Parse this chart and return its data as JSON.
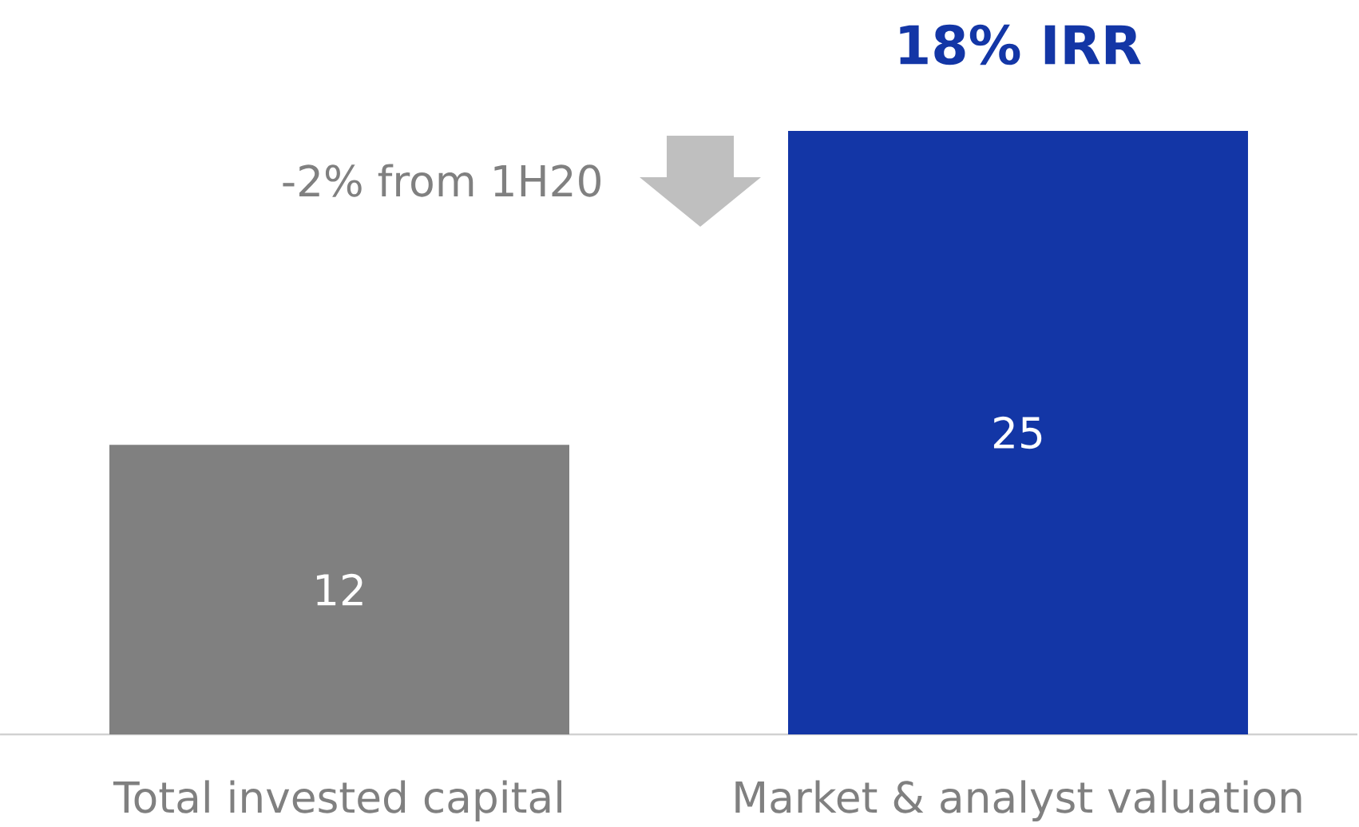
{
  "chart_data": {
    "type": "bar",
    "categories": [
      "Total invested capital",
      "Market & analyst valuation"
    ],
    "values": [
      12,
      25
    ],
    "colors": [
      "#808080",
      "#1336a6"
    ],
    "data_labels": true,
    "tick_labels": "x",
    "annotations": [
      "18% IRR",
      "-2% from 1H20"
    ]
  }
}
